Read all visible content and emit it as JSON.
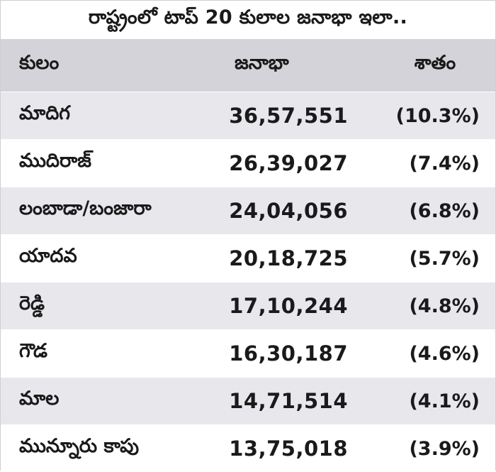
{
  "title": "రాష్ట్రంలో టాప్ 20 కులాల జనాభా ఇలా..",
  "columns": {
    "caste": "కులం",
    "population": "జనాభా",
    "percent": "శాతం"
  },
  "rows": [
    {
      "caste": "మాదిగ",
      "population": "36,57,551",
      "percent": "(10.3%)"
    },
    {
      "caste": "ముదిరాజ్",
      "population": "26,39,027",
      "percent": "(7.4%)"
    },
    {
      "caste": "లంబాడా/బంజారా",
      "population": "24,04,056",
      "percent": "(6.8%)"
    },
    {
      "caste": "యాదవ",
      "population": "20,18,725",
      "percent": "(5.7%)"
    },
    {
      "caste": "రెడ్డి",
      "population": "17,10,244",
      "percent": "(4.8%)"
    },
    {
      "caste": "గౌడ",
      "population": "16,30,187",
      "percent": "(4.6%)"
    },
    {
      "caste": "మాల",
      "population": "14,71,514",
      "percent": "(4.1%)"
    },
    {
      "caste": "మున్నూరు కాపు",
      "population": "13,75,018",
      "percent": "(3.9%)"
    }
  ],
  "colors": {
    "header_bg": "#d4d3d9",
    "row_shade": "#e8e7ec",
    "text": "#1a1a1a"
  }
}
